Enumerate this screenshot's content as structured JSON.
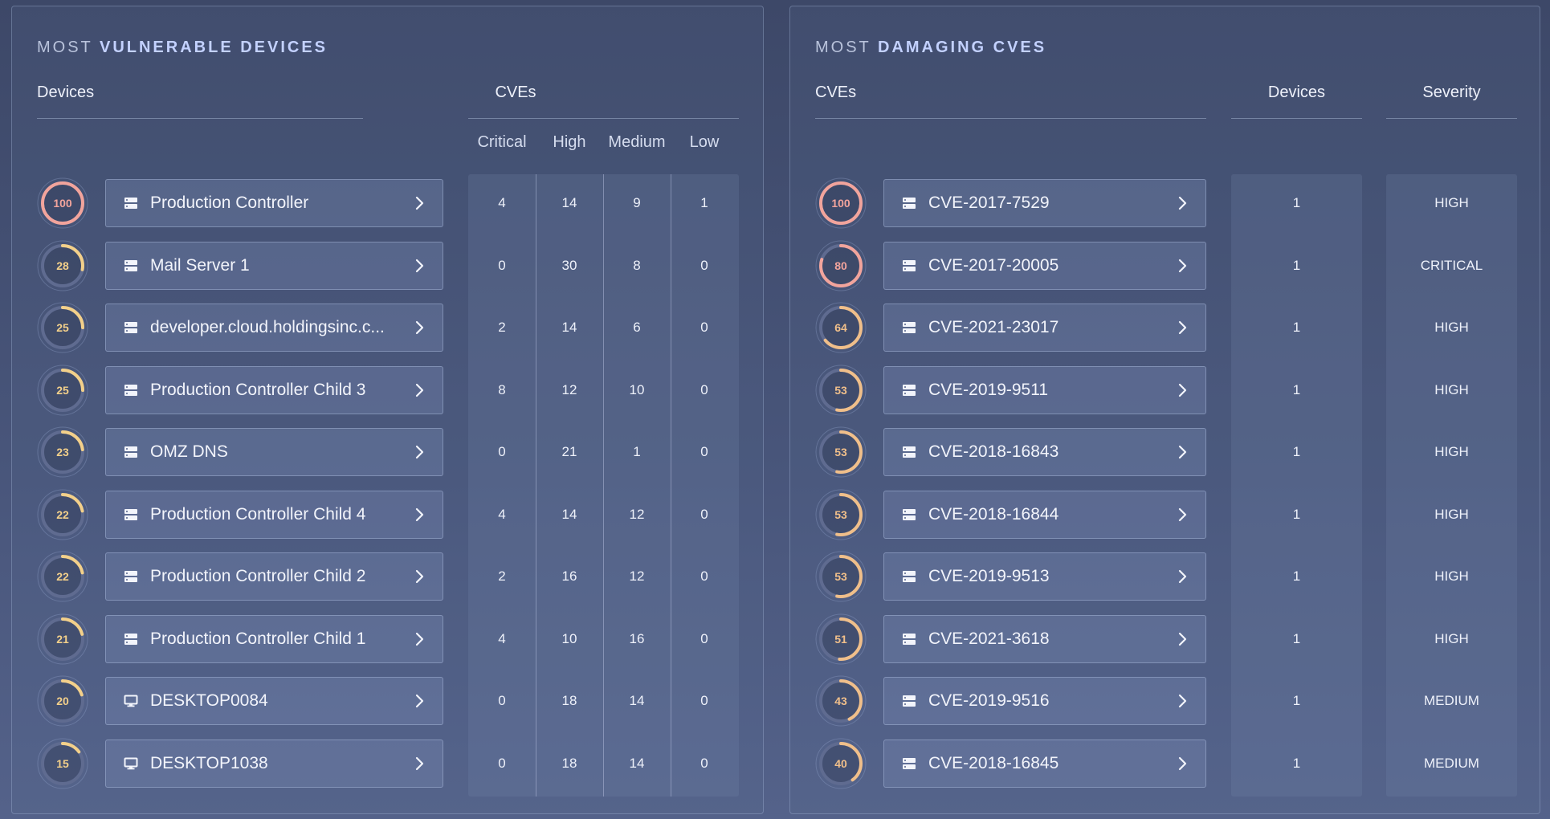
{
  "devices_panel": {
    "title_prefix": "MOST",
    "title_bold": "VULNERABLE DEVICES",
    "col_devices": "Devices",
    "col_cves": "CVEs",
    "sub_cols": [
      "Critical",
      "High",
      "Medium",
      "Low"
    ],
    "rows": [
      {
        "score": "100",
        "score_value": 100,
        "name": "Production Controller",
        "icon": "server-icon",
        "critical": "4",
        "high": "14",
        "medium": "9",
        "low": "1"
      },
      {
        "score": "28",
        "score_value": 28,
        "name": "Mail Server 1",
        "icon": "server-icon",
        "critical": "0",
        "high": "30",
        "medium": "8",
        "low": "0"
      },
      {
        "score": "25",
        "score_value": 25,
        "name": "developer.cloud.holdingsinc.c...",
        "icon": "server-icon",
        "critical": "2",
        "high": "14",
        "medium": "6",
        "low": "0"
      },
      {
        "score": "25",
        "score_value": 25,
        "name": "Production Controller Child 3",
        "icon": "server-icon",
        "critical": "8",
        "high": "12",
        "medium": "10",
        "low": "0"
      },
      {
        "score": "23",
        "score_value": 23,
        "name": "OMZ DNS",
        "icon": "server-icon",
        "critical": "0",
        "high": "21",
        "medium": "1",
        "low": "0"
      },
      {
        "score": "22",
        "score_value": 22,
        "name": "Production Controller Child 4",
        "icon": "server-icon",
        "critical": "4",
        "high": "14",
        "medium": "12",
        "low": "0"
      },
      {
        "score": "22",
        "score_value": 22,
        "name": "Production Controller Child 2",
        "icon": "server-icon",
        "critical": "2",
        "high": "16",
        "medium": "12",
        "low": "0"
      },
      {
        "score": "21",
        "score_value": 21,
        "name": "Production Controller Child 1",
        "icon": "server-icon",
        "critical": "4",
        "high": "10",
        "medium": "16",
        "low": "0"
      },
      {
        "score": "20",
        "score_value": 20,
        "name": "DESKTOP0084",
        "icon": "desktop-icon",
        "critical": "0",
        "high": "18",
        "medium": "14",
        "low": "0"
      },
      {
        "score": "15",
        "score_value": 15,
        "name": "DESKTOP1038",
        "icon": "desktop-icon",
        "critical": "0",
        "high": "18",
        "medium": "14",
        "low": "0"
      }
    ]
  },
  "cves_panel": {
    "title_prefix": "MOST",
    "title_bold": "DAMAGING CVES",
    "col_cves": "CVEs",
    "col_devices": "Devices",
    "col_severity": "Severity",
    "rows": [
      {
        "score": "100",
        "score_value": 100,
        "cve": "CVE-2017-7529",
        "devices": "1",
        "severity": "HIGH"
      },
      {
        "score": "80",
        "score_value": 80,
        "cve": "CVE-2017-20005",
        "devices": "1",
        "severity": "CRITICAL"
      },
      {
        "score": "64",
        "score_value": 64,
        "cve": "CVE-2021-23017",
        "devices": "1",
        "severity": "HIGH"
      },
      {
        "score": "53",
        "score_value": 53,
        "cve": "CVE-2019-9511",
        "devices": "1",
        "severity": "HIGH"
      },
      {
        "score": "53",
        "score_value": 53,
        "cve": "CVE-2018-16843",
        "devices": "1",
        "severity": "HIGH"
      },
      {
        "score": "53",
        "score_value": 53,
        "cve": "CVE-2018-16844",
        "devices": "1",
        "severity": "HIGH"
      },
      {
        "score": "53",
        "score_value": 53,
        "cve": "CVE-2019-9513",
        "devices": "1",
        "severity": "HIGH"
      },
      {
        "score": "51",
        "score_value": 51,
        "cve": "CVE-2021-3618",
        "devices": "1",
        "severity": "HIGH"
      },
      {
        "score": "43",
        "score_value": 43,
        "cve": "CVE-2019-9516",
        "devices": "1",
        "severity": "MEDIUM"
      },
      {
        "score": "40",
        "score_value": 40,
        "cve": "CVE-2018-16845",
        "devices": "1",
        "severity": "MEDIUM"
      }
    ]
  },
  "colors": {
    "score_high": "#f2a49c",
    "score_mid": "#f0bf8a",
    "score_low": "#f3d08a",
    "ring_track": "#5f6b90"
  }
}
